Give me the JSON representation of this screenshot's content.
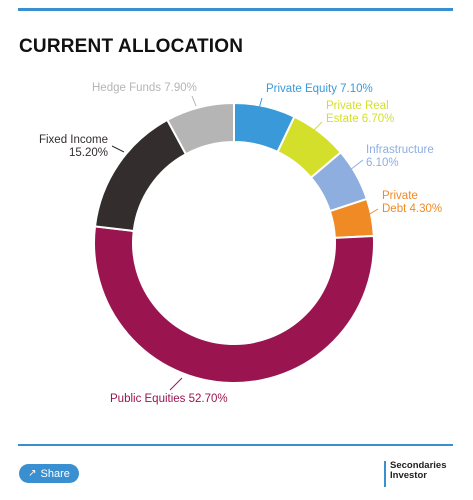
{
  "header": {
    "title": "CURRENT ALLOCATION"
  },
  "chart_data": {
    "type": "pie",
    "title": "CURRENT ALLOCATION",
    "slices": [
      {
        "label_lines": [
          "Private Equity 7.10%"
        ],
        "value": 7.1,
        "color": "#3a9ad9"
      },
      {
        "label_lines": [
          "Private Real",
          "Estate 6.70%"
        ],
        "value": 6.7,
        "color": "#d4df2b"
      },
      {
        "label_lines": [
          "Infrastructure",
          "6.10%"
        ],
        "value": 6.1,
        "color": "#8eaee0"
      },
      {
        "label_lines": [
          "Private",
          "Debt 4.30%"
        ],
        "value": 4.3,
        "color": "#f08a24"
      },
      {
        "label_lines": [
          "Public Equities 52.70%"
        ],
        "value": 52.7,
        "color": "#9a1550"
      },
      {
        "label_lines": [
          "Fixed Income",
          "15.20%"
        ],
        "value": 15.2,
        "color": "#332d2d"
      },
      {
        "label_lines": [
          "Hedge Funds 7.90%"
        ],
        "value": 7.9,
        "color": "#b5b5b5"
      }
    ]
  },
  "footer": {
    "share_label": "Share",
    "share_icon": "share-icon",
    "brand_line1": "Secondaries",
    "brand_line2": "Investor"
  }
}
